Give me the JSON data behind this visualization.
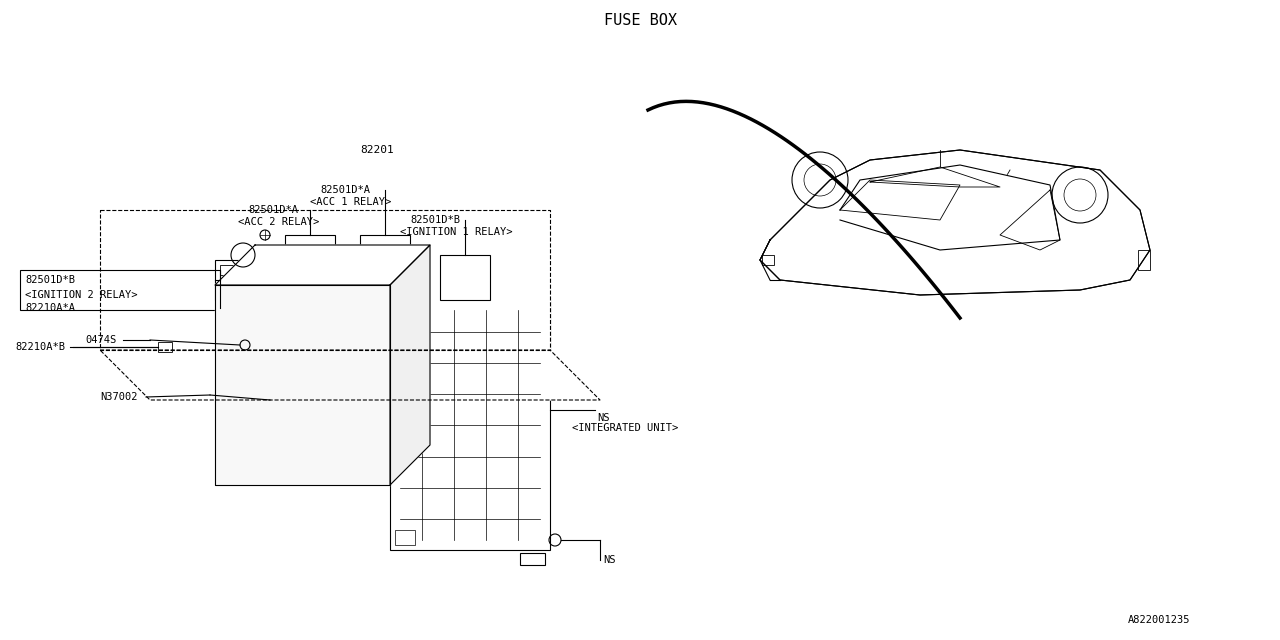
{
  "background_color": "#ffffff",
  "line_color": "#000000",
  "text_color": "#000000",
  "title": "FUSE BOX",
  "diagram_id": "A822001235",
  "font_family": "monospace",
  "labels": {
    "NS_top": "NS",
    "NS_integrated": "NS\n<INTEGRATED UNIT>",
    "N37002": "N37002",
    "82210AB": "82210A*B",
    "0474S": "0474S",
    "82501DB_ign2": "82501D*B",
    "IGN2_relay": "<IGNITION 2 RELAY>",
    "82210AA": "82210A*A",
    "82501DA_acc2": "82501D*A",
    "ACC2_relay": "<ACC 2 RELAY>",
    "82501DB_ign1": "82501D*B",
    "IGN1_relay": "<IGNITION 1 RELAY>",
    "82501DA_acc1": "82501D*A",
    "ACC1_relay": "<ACC 1 RELAY>",
    "82201": "82201"
  }
}
